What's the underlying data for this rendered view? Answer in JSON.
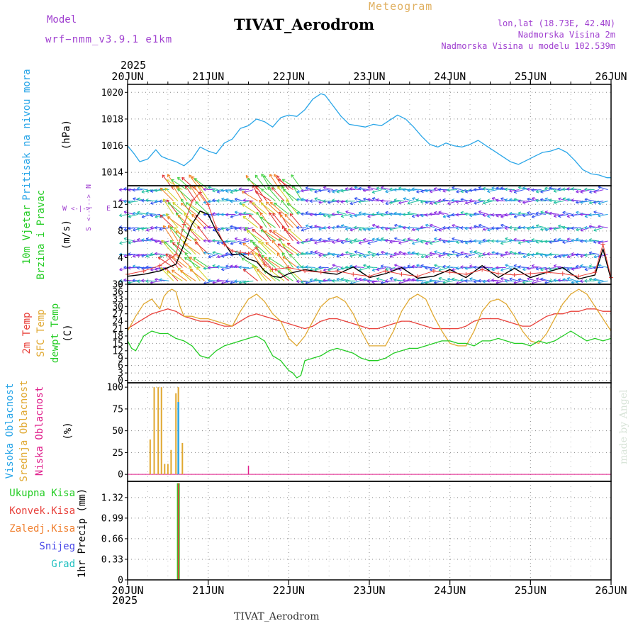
{
  "header": {
    "model_label": "Model",
    "model_name": "wrf−nmm_v3.9.1 e1km",
    "meteogram_label": "Meteogram",
    "station": "TIVAT_Aerodrom",
    "lonlat": "lon,lat (18.73E, 42.4N)",
    "elevation": "Nadmorska Visina 2m",
    "model_elevation": "Nadmorska Visina u modelu 102.539m",
    "year_top": "2025",
    "year_bottom": "2025",
    "footer_station": "TIVAT_Aerodrom",
    "credit": "made by Angel"
  },
  "colors": {
    "pressure": "#2aa6e8",
    "temp2m": "#e8403a",
    "sfc_temp": "#e0a830",
    "dewpoint": "#22cc22",
    "wind_speed": "#000000",
    "gust": "#e8403a",
    "cloud_high": "#2aa6e8",
    "cloud_mid": "#e0a830",
    "cloud_low": "#e0208c",
    "precip_total": "#22cc22",
    "precip_conv": "#e8403a",
    "precip_frozen": "#f08030",
    "snow": "#4848e8",
    "hail": "#20c0c0",
    "header_purple": "#a040d0",
    "header_orange": "#e0b060"
  },
  "chart_data": {
    "type": "line",
    "x_ticks": [
      "20JUN",
      "21JUN",
      "22JUN",
      "23JUN",
      "24JUN",
      "25JUN",
      "26JUN"
    ],
    "x_range_days": [
      0,
      6
    ],
    "panels": [
      {
        "id": "pressure",
        "ylabel_main": "Pritisak na nivou mora",
        "ylabel_unit": "(hPa)",
        "ylim": [
          1013.0,
          1020.6
        ],
        "y_ticks": [
          1014,
          1016,
          1018,
          1020
        ],
        "grid": true,
        "series": [
          {
            "color_key": "pressure",
            "x": [
              0,
              0.08,
              0.15,
              0.25,
              0.35,
              0.42,
              0.5,
              0.6,
              0.7,
              0.8,
              0.9,
              1.0,
              1.1,
              1.2,
              1.3,
              1.4,
              1.5,
              1.6,
              1.7,
              1.8,
              1.9,
              2.0,
              2.1,
              2.2,
              2.3,
              2.4,
              2.45,
              2.55,
              2.65,
              2.75,
              2.85,
              2.95,
              3.05,
              3.15,
              3.25,
              3.35,
              3.45,
              3.55,
              3.65,
              3.75,
              3.85,
              3.95,
              4.05,
              4.15,
              4.25,
              4.35,
              4.45,
              4.55,
              4.65,
              4.75,
              4.85,
              4.95,
              5.05,
              5.15,
              5.25,
              5.35,
              5.45,
              5.55,
              5.65,
              5.75,
              5.85,
              5.95,
              6.0
            ],
            "y": [
              1016.0,
              1015.4,
              1014.8,
              1015.0,
              1015.7,
              1015.2,
              1015.0,
              1014.8,
              1014.5,
              1015.0,
              1015.9,
              1015.6,
              1015.4,
              1016.2,
              1016.5,
              1017.3,
              1017.5,
              1018.0,
              1017.8,
              1017.4,
              1018.1,
              1018.3,
              1018.2,
              1018.7,
              1019.5,
              1019.9,
              1019.8,
              1019.0,
              1018.2,
              1017.6,
              1017.5,
              1017.4,
              1017.6,
              1017.5,
              1017.9,
              1018.3,
              1018.0,
              1017.4,
              1016.7,
              1016.1,
              1015.9,
              1016.2,
              1016.0,
              1015.9,
              1016.1,
              1016.4,
              1016.0,
              1015.6,
              1015.2,
              1014.8,
              1014.6,
              1014.9,
              1015.2,
              1015.5,
              1015.6,
              1015.8,
              1015.5,
              1014.9,
              1014.2,
              1013.9,
              1013.8,
              1013.6,
              1013.6
            ]
          }
        ]
      },
      {
        "id": "wind",
        "ylabel_main": "10m Vjetar",
        "ylabel_sub": "Brzina i Pravac",
        "ylabel_unit": "(m/s)",
        "compass": "N / E W <--|--> / S",
        "ylim": [
          0,
          14.8
        ],
        "y_ticks": [
          0,
          4,
          8,
          12
        ],
        "grid": true,
        "series": [
          {
            "name_key": "wind_speed",
            "color_key": "wind_speed",
            "x": [
              0,
              0.2,
              0.4,
              0.6,
              0.7,
              0.8,
              0.9,
              1.0,
              1.1,
              1.15,
              1.2,
              1.3,
              1.4,
              1.5,
              1.6,
              1.7,
              1.8,
              1.9,
              2.0,
              2.2,
              2.4,
              2.6,
              2.8,
              3.0,
              3.2,
              3.4,
              3.6,
              3.8,
              4.0,
              4.2,
              4.4,
              4.6,
              4.8,
              5.0,
              5.2,
              5.4,
              5.6,
              5.8,
              5.9,
              6.0
            ],
            "y": [
              1.2,
              1.5,
              2.0,
              3.0,
              6.0,
              9.0,
              11.0,
              10.5,
              8.0,
              7.0,
              6.2,
              4.4,
              4.6,
              3.8,
              3.4,
              2.0,
              1.2,
              1.0,
              1.6,
              2.2,
              1.8,
              1.5,
              2.6,
              1.0,
              1.6,
              2.5,
              0.9,
              1.2,
              2.2,
              1.0,
              2.8,
              1.0,
              2.4,
              1.0,
              1.8,
              2.5,
              0.8,
              1.4,
              5.3,
              0.7
            ]
          },
          {
            "name_key": "gust",
            "color_key": "gust",
            "marker": "+",
            "x": [
              0,
              0.2,
              0.4,
              0.6,
              0.7,
              0.8,
              0.9,
              1.0,
              1.1,
              1.2,
              1.3,
              1.4,
              1.5,
              1.6,
              1.7,
              1.8,
              2.0,
              2.2,
              2.4,
              2.6,
              2.8,
              3.0,
              3.2,
              3.4,
              3.6,
              3.8,
              4.0,
              4.2,
              4.4,
              4.6,
              4.8,
              5.0,
              5.2,
              5.4,
              5.6,
              5.8,
              5.9,
              6.0
            ],
            "y": [
              1.5,
              2.0,
              2.8,
              4.5,
              9.0,
              12.5,
              13.8,
              12.0,
              8.5,
              6.0,
              5.0,
              4.8,
              4.6,
              5.5,
              3.0,
              2.2,
              2.5,
              2.0,
              1.8,
              2.0,
              1.5,
              1.2,
              2.0,
              1.5,
              1.2,
              2.0,
              1.8,
              1.5,
              2.2,
              1.6,
              1.4,
              1.6,
              1.8,
              1.6,
              1.2,
              1.8,
              6.0,
              1.0
            ]
          }
        ],
        "barb_rows": [
          0.5,
          2.5,
          4.5,
          6.5,
          8.5,
          10.5,
          12.5,
          14.2
        ]
      },
      {
        "id": "temperature",
        "ylabel_lines": [
          "2m Temp",
          "SFC Temp",
          "dewpt Temp"
        ],
        "ylabel_unit": "(C)",
        "ylim": [
          -1,
          39
        ],
        "y_ticks": [
          0,
          3,
          6,
          9,
          12,
          15,
          18,
          21,
          24,
          27,
          30,
          33,
          36,
          39
        ],
        "grid": true,
        "series": [
          {
            "name_key": "temp2m",
            "color_key": "temp2m",
            "x": [
              0,
              0.1,
              0.2,
              0.3,
              0.4,
              0.5,
              0.6,
              0.7,
              0.8,
              0.9,
              1.0,
              1.1,
              1.2,
              1.3,
              1.4,
              1.5,
              1.6,
              1.7,
              1.8,
              1.9,
              2.0,
              2.1,
              2.2,
              2.3,
              2.4,
              2.5,
              2.6,
              2.7,
              2.8,
              2.9,
              3.0,
              3.1,
              3.2,
              3.3,
              3.4,
              3.5,
              3.6,
              3.7,
              3.8,
              3.9,
              4.0,
              4.1,
              4.2,
              4.3,
              4.4,
              4.5,
              4.6,
              4.7,
              4.8,
              4.9,
              5.0,
              5.1,
              5.2,
              5.3,
              5.4,
              5.5,
              5.6,
              5.7,
              5.8,
              5.9,
              6.0
            ],
            "y": [
              21,
              23,
              25,
              27,
              28,
              29,
              28,
              26,
              25,
              24,
              24,
              23,
              22,
              22,
              24,
              26,
              27,
              26,
              25,
              24,
              23,
              22,
              21,
              22,
              24,
              25,
              25,
              24,
              23,
              22,
              21,
              21,
              22,
              23,
              24,
              24,
              23,
              22,
              21,
              21,
              21,
              21,
              22,
              24,
              25,
              25,
              25,
              24,
              23,
              22,
              22,
              24,
              26,
              27,
              27,
              28,
              28,
              29,
              29,
              28,
              28
            ]
          },
          {
            "name_key": "sfc_temp",
            "color_key": "sfc_temp",
            "x": [
              0,
              0.1,
              0.2,
              0.3,
              0.4,
              0.45,
              0.5,
              0.55,
              0.6,
              0.65,
              0.7,
              0.8,
              0.9,
              1.0,
              1.1,
              1.2,
              1.3,
              1.4,
              1.5,
              1.6,
              1.7,
              1.8,
              1.9,
              2.0,
              2.1,
              2.2,
              2.3,
              2.4,
              2.5,
              2.6,
              2.7,
              2.8,
              2.9,
              3.0,
              3.1,
              3.2,
              3.3,
              3.4,
              3.5,
              3.6,
              3.7,
              3.8,
              3.9,
              4.0,
              4.1,
              4.2,
              4.3,
              4.4,
              4.5,
              4.6,
              4.7,
              4.8,
              4.9,
              5.0,
              5.1,
              5.2,
              5.3,
              5.4,
              5.5,
              5.6,
              5.7,
              5.8,
              5.9,
              6.0
            ],
            "y": [
              20,
              26,
              31,
              33,
              29,
              34,
              36,
              37,
              36,
              30,
              26,
              26,
              25,
              25,
              24,
              23,
              22,
              28,
              33,
              35,
              32,
              27,
              24,
              17,
              14,
              18,
              24,
              30,
              33,
              34,
              32,
              27,
              20,
              14,
              14,
              14,
              20,
              28,
              33,
              35,
              33,
              26,
              20,
              15,
              14,
              14,
              20,
              28,
              32,
              33,
              31,
              26,
              20,
              16,
              15,
              19,
              25,
              31,
              35,
              37,
              35,
              30,
              25,
              20
            ]
          },
          {
            "name_key": "dewpoint",
            "color_key": "dewpoint",
            "x": [
              0,
              0.05,
              0.1,
              0.15,
              0.2,
              0.3,
              0.4,
              0.5,
              0.6,
              0.7,
              0.8,
              0.9,
              1.0,
              1.1,
              1.2,
              1.3,
              1.4,
              1.5,
              1.6,
              1.7,
              1.8,
              1.9,
              2.0,
              2.05,
              2.1,
              2.15,
              2.2,
              2.3,
              2.4,
              2.5,
              2.6,
              2.7,
              2.8,
              2.9,
              3.0,
              3.1,
              3.2,
              3.3,
              3.4,
              3.5,
              3.6,
              3.7,
              3.8,
              3.9,
              4.0,
              4.1,
              4.2,
              4.3,
              4.4,
              4.5,
              4.6,
              4.7,
              4.8,
              4.9,
              5.0,
              5.1,
              5.2,
              5.3,
              5.4,
              5.5,
              5.6,
              5.7,
              5.8,
              5.9,
              6.0
            ],
            "y": [
              16,
              13,
              12,
              15,
              18,
              20,
              19,
              19,
              17,
              16,
              14,
              10,
              9,
              12,
              14,
              15,
              16,
              17,
              18,
              16,
              10,
              8,
              4,
              3,
              1,
              2,
              8,
              9,
              10,
              12,
              13,
              12,
              11,
              9,
              8,
              8,
              9,
              11,
              12,
              13,
              13,
              14,
              15,
              16,
              16,
              15,
              15,
              14,
              16,
              16,
              17,
              16,
              15,
              15,
              14,
              16,
              15,
              16,
              18,
              20,
              18,
              16,
              17,
              16,
              17
            ]
          }
        ]
      },
      {
        "id": "clouds",
        "ylabel_lines": [
          "Visoka Oblacnost",
          "Srednja Oblacnost",
          "Niska Oblacnost"
        ],
        "ylabel_unit": "(%)",
        "ylim": [
          -8,
          105
        ],
        "y_ticks": [
          0,
          25,
          50,
          75,
          100
        ],
        "grid": true,
        "bars_mid": {
          "x": [
            0.28,
            0.33,
            0.38,
            0.42,
            0.46,
            0.5,
            0.54,
            0.6,
            0.63,
            0.68
          ],
          "y": [
            40,
            100,
            100,
            100,
            12,
            12,
            28,
            93,
            100,
            36
          ]
        },
        "bars_high": {
          "x": [
            0.63
          ],
          "y": [
            83
          ]
        },
        "bars_low": {
          "x": [
            1.5
          ],
          "y": [
            10
          ]
        }
      },
      {
        "id": "precip",
        "ylabel_main": "1hr Precip (mm)",
        "legend": [
          "Ukupna Kisa",
          "Konvek.Kisa",
          "Zaledj.Kisa",
          "Snijeg",
          "Grad"
        ],
        "ylim": [
          0,
          1.58
        ],
        "y_ticks": [
          0,
          0.33,
          0.66,
          0.99,
          1.32
        ],
        "grid": true,
        "bars_total": {
          "x": [
            0.63
          ],
          "y": [
            1.55
          ]
        },
        "bars_conv": {
          "x": [
            0.63
          ],
          "y": [
            1.55
          ]
        }
      }
    ]
  }
}
